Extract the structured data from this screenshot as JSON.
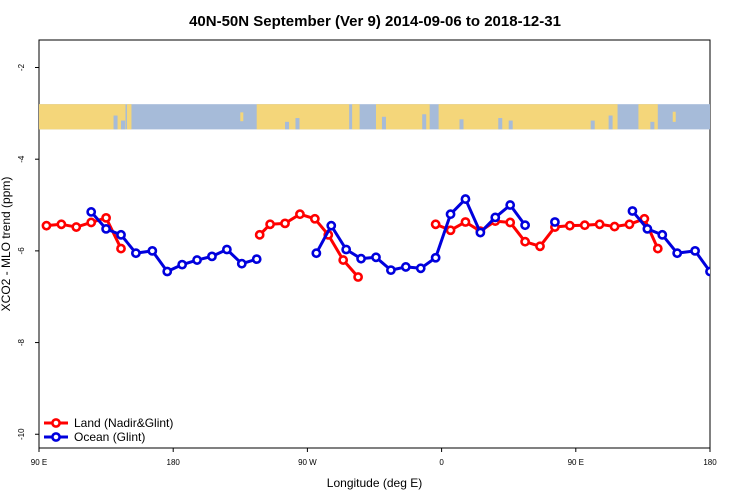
{
  "chart_data": {
    "type": "line",
    "title": "40N-50N September (Ver 9)   2014-09-06 to 2018-12-31",
    "xlabel": "Longitude (deg E)",
    "ylabel": "XCO2 - MLO trend (ppm)",
    "xlim": [
      90,
      540
    ],
    "ylim": [
      -10.3,
      -1.4
    ],
    "x_ticks": [
      {
        "value": 90,
        "label": "90 E"
      },
      {
        "value": 180,
        "label": "180"
      },
      {
        "value": 270,
        "label": "90 W"
      },
      {
        "value": 360,
        "label": "0"
      },
      {
        "value": 450,
        "label": "90 E"
      },
      {
        "value": 540,
        "label": "180"
      }
    ],
    "y_ticks": [
      {
        "value": -2,
        "label": "-2"
      },
      {
        "value": -4,
        "label": "-4"
      },
      {
        "value": -6,
        "label": "-6"
      },
      {
        "value": -8,
        "label": "-8"
      },
      {
        "value": -10,
        "label": "-10"
      }
    ],
    "grid": false,
    "legend_position": "bottom-left",
    "map_strip": {
      "y_range": [
        -3.35,
        -2.8
      ],
      "land_color": "#f4d67a",
      "ocean_color": "#a6bbd9"
    },
    "series": [
      {
        "name": "Land (Nadir&Glint)",
        "color": "#ff0000",
        "segments": [
          [
            [
              95,
              -5.45
            ],
            [
              105,
              -5.42
            ],
            [
              115,
              -5.48
            ],
            [
              125,
              -5.38
            ],
            [
              135,
              -5.28
            ],
            [
              145,
              -5.95
            ]
          ],
          [
            [
              238,
              -5.65
            ],
            [
              245,
              -5.42
            ],
            [
              255,
              -5.4
            ],
            [
              265,
              -5.2
            ],
            [
              275,
              -5.3
            ],
            [
              284,
              -5.65
            ],
            [
              294,
              -6.2
            ],
            [
              304,
              -6.57
            ]
          ],
          [
            [
              356,
              -5.42
            ],
            [
              366,
              -5.55
            ],
            [
              376,
              -5.37
            ],
            [
              386,
              -5.57
            ],
            [
              396,
              -5.35
            ],
            [
              406,
              -5.38
            ],
            [
              416,
              -5.8
            ],
            [
              426,
              -5.9
            ],
            [
              436,
              -5.48
            ],
            [
              446,
              -5.45
            ],
            [
              456,
              -5.44
            ],
            [
              466,
              -5.42
            ],
            [
              476,
              -5.47
            ],
            [
              486,
              -5.42
            ],
            [
              496,
              -5.3
            ],
            [
              505,
              -5.95
            ]
          ]
        ]
      },
      {
        "name": "Ocean (Glint)",
        "color": "#0000dd",
        "segments": [
          [
            [
              125,
              -5.15
            ],
            [
              135,
              -5.52
            ],
            [
              145,
              -5.65
            ],
            [
              155,
              -6.05
            ],
            [
              166,
              -6.0
            ],
            [
              176,
              -6.45
            ],
            [
              186,
              -6.3
            ],
            [
              196,
              -6.2
            ],
            [
              206,
              -6.12
            ],
            [
              216,
              -5.97
            ],
            [
              226,
              -6.28
            ],
            [
              236,
              -6.18
            ]
          ],
          [
            [
              276,
              -6.05
            ],
            [
              286,
              -5.45
            ],
            [
              296,
              -5.97
            ],
            [
              306,
              -6.17
            ],
            [
              316,
              -6.14
            ],
            [
              326,
              -6.42
            ],
            [
              336,
              -6.35
            ],
            [
              346,
              -6.38
            ],
            [
              356,
              -6.15
            ],
            [
              366,
              -5.2
            ],
            [
              376,
              -4.87
            ],
            [
              386,
              -5.6
            ],
            [
              396,
              -5.27
            ],
            [
              406,
              -5.0
            ],
            [
              416,
              -5.44
            ]
          ],
          [
            [
              436,
              -5.37
            ]
          ],
          [
            [
              488,
              -5.13
            ],
            [
              498,
              -5.52
            ],
            [
              508,
              -5.65
            ],
            [
              518,
              -6.05
            ],
            [
              530,
              -6.0
            ],
            [
              540,
              -6.45
            ]
          ]
        ]
      }
    ]
  }
}
